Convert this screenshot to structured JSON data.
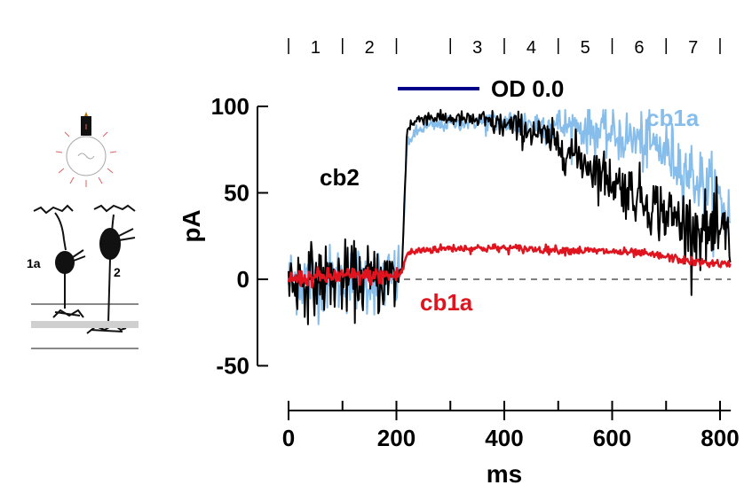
{
  "chart_data": {
    "type": "line",
    "xlabel": "ms",
    "ylabel": "pA",
    "xlim": [
      0,
      820
    ],
    "ylim": [
      -60,
      100
    ],
    "x_ticks": [
      0,
      200,
      400,
      600,
      800
    ],
    "y_ticks": [
      -50,
      0,
      50,
      100
    ],
    "zero_line": "dashed",
    "grid": false,
    "stimulus": {
      "label": "OD 0.0",
      "color": "#00008b"
    },
    "segments": {
      "labels": [
        "1",
        "2",
        "3",
        "4",
        "5",
        "6",
        "7"
      ],
      "boundaries_ms": [
        0,
        100,
        200,
        300,
        400,
        500,
        600,
        700,
        800
      ]
    },
    "series": [
      {
        "name": "cb1a",
        "color": "#87bdea",
        "noise_amplitude": "high",
        "x": [
          0,
          50,
          100,
          150,
          200,
          210,
          220,
          250,
          300,
          350,
          400,
          450,
          500,
          550,
          600,
          650,
          700,
          750,
          800,
          820
        ],
        "y": [
          0,
          0,
          0,
          0,
          0,
          5,
          80,
          88,
          90,
          91,
          91,
          90,
          89,
          87,
          84,
          80,
          74,
          60,
          45,
          35
        ]
      },
      {
        "name": "cb2",
        "color": "#000000",
        "noise_amplitude": "high",
        "x": [
          0,
          50,
          100,
          150,
          200,
          210,
          220,
          250,
          300,
          350,
          400,
          450,
          500,
          550,
          600,
          650,
          700,
          750,
          800,
          820
        ],
        "y": [
          0,
          0,
          0,
          0,
          0,
          5,
          88,
          94,
          93,
          92,
          89,
          86,
          78,
          68,
          57,
          48,
          38,
          30,
          25,
          22
        ]
      },
      {
        "name": "cb1a",
        "color": "#e0141e",
        "noise_amplitude": "low",
        "x": [
          0,
          50,
          100,
          150,
          200,
          210,
          220,
          250,
          300,
          400,
          500,
          600,
          650,
          700,
          750,
          800,
          820
        ],
        "y": [
          0,
          1,
          2,
          2,
          2,
          4,
          15,
          17,
          18,
          18,
          17,
          16,
          15,
          13,
          10,
          9,
          8
        ]
      }
    ],
    "annotations": [
      {
        "text": "cb2",
        "color": "#000000"
      },
      {
        "text": "cb1a",
        "color": "#87bdea"
      },
      {
        "text": "cb1a",
        "color": "#e0141e"
      }
    ]
  },
  "schematic": {
    "cell_labels": [
      "1a",
      "2"
    ]
  }
}
